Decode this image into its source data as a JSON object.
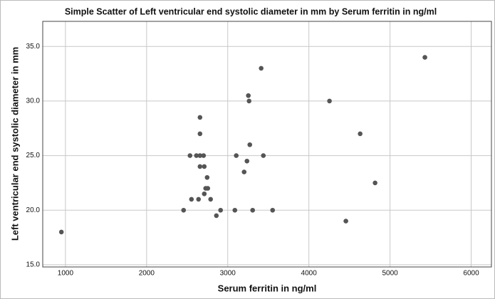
{
  "chart_data": {
    "type": "scatter",
    "title": "Simple Scatter of Left ventricular end systolic diameter in mm by Serum ferritin in ng/ml",
    "x_label": "Serum ferritin in ng/ml",
    "y_label": "Left ventricular end systolic diameter in mm",
    "color": "#555555",
    "grid": true,
    "xlim": [
      720,
      6250
    ],
    "ylim": [
      14.8,
      37.3
    ],
    "xticks": [
      1000,
      2000,
      3000,
      4000,
      5000,
      6000
    ],
    "yticks": [
      {
        "value": 15,
        "label": "15.0"
      },
      {
        "value": 20,
        "label": "20.0"
      },
      {
        "value": 25,
        "label": "25.0"
      },
      {
        "value": 30,
        "label": "30.0"
      },
      {
        "value": 35,
        "label": "35.0"
      }
    ],
    "x": [
      950,
      2456,
      2535,
      2553,
      2614,
      2640,
      2658,
      2658,
      2658,
      2658,
      2702,
      2711,
      2711,
      2728,
      2746,
      2754,
      2789,
      2860,
      2912,
      3088,
      3105,
      3202,
      3237,
      3254,
      3263,
      3272,
      3307,
      3412,
      3439,
      3553,
      4254,
      4456,
      4632,
      4816,
      5430
    ],
    "values": [
      18,
      20,
      25,
      21,
      25,
      21,
      24,
      25,
      27,
      28.5,
      25,
      24,
      21.5,
      22,
      23,
      22,
      21,
      19.5,
      20,
      20,
      25,
      23.5,
      24.5,
      30.5,
      30,
      26,
      20,
      33,
      25,
      20,
      30,
      19,
      27,
      22.5,
      34
    ]
  }
}
